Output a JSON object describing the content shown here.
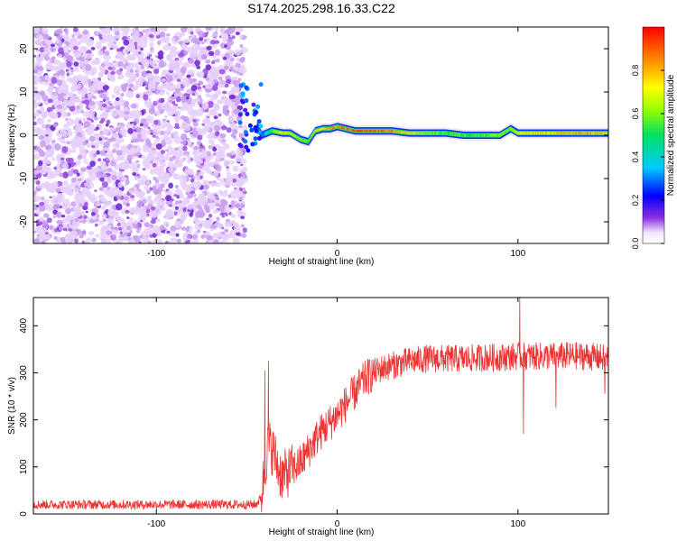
{
  "title": "S174.2025.298.16.33.C22",
  "chart_data": [
    {
      "type": "heatmap",
      "xlabel": "Height of straight line (km)",
      "ylabel": "Frequency (Hz)",
      "xlim": [
        -168,
        150
      ],
      "ylim": [
        -25,
        25
      ],
      "x_ticks": [
        -100,
        0,
        100
      ],
      "y_ticks": [
        -20,
        -10,
        0,
        10,
        20
      ],
      "x_tick_labels": [
        "-100",
        "0",
        "100"
      ],
      "y_tick_labels": [
        "-20",
        "-10",
        "0",
        "10",
        "20"
      ],
      "noise_region_x": [
        -168,
        -54
      ],
      "signal_track": [
        {
          "x": -50,
          "f": 6,
          "amp": 0.35
        },
        {
          "x": -46,
          "f": 4,
          "amp": 0.3
        },
        {
          "x": -42,
          "f": 0,
          "amp": 0.25
        },
        {
          "x": -36,
          "f": 1,
          "amp": 0.55
        },
        {
          "x": -30,
          "f": 0.5,
          "amp": 0.75
        },
        {
          "x": -26,
          "f": 0.5,
          "amp": 0.7
        },
        {
          "x": -20,
          "f": -1,
          "amp": 0.6
        },
        {
          "x": -16,
          "f": -1.5,
          "amp": 0.55
        },
        {
          "x": -12,
          "f": 1,
          "amp": 0.7
        },
        {
          "x": -8,
          "f": 1.5,
          "amp": 0.75
        },
        {
          "x": -4,
          "f": 1.5,
          "amp": 0.8
        },
        {
          "x": 0,
          "f": 2,
          "amp": 0.85
        },
        {
          "x": 5,
          "f": 1.5,
          "amp": 0.85
        },
        {
          "x": 10,
          "f": 1,
          "amp": 0.9
        },
        {
          "x": 20,
          "f": 1,
          "amp": 0.9
        },
        {
          "x": 30,
          "f": 1,
          "amp": 0.85
        },
        {
          "x": 40,
          "f": 0.5,
          "amp": 0.7
        },
        {
          "x": 50,
          "f": 0.5,
          "amp": 0.6
        },
        {
          "x": 60,
          "f": 0.5,
          "amp": 0.55
        },
        {
          "x": 70,
          "f": 0,
          "amp": 0.55
        },
        {
          "x": 80,
          "f": 0,
          "amp": 0.55
        },
        {
          "x": 90,
          "f": 0,
          "amp": 0.6
        },
        {
          "x": 96,
          "f": 1.5,
          "amp": 0.55
        },
        {
          "x": 100,
          "f": 0.5,
          "amp": 0.7
        },
        {
          "x": 110,
          "f": 0.5,
          "amp": 0.75
        },
        {
          "x": 120,
          "f": 0.5,
          "amp": 0.75
        },
        {
          "x": 130,
          "f": 0.5,
          "amp": 0.8
        },
        {
          "x": 140,
          "f": 0.5,
          "amp": 0.8
        },
        {
          "x": 148,
          "f": 0.5,
          "amp": 0.75
        }
      ]
    },
    {
      "type": "line",
      "xlabel": "Height of straight line (km)",
      "ylabel": "SNR (10 * v/v)",
      "xlim": [
        -168,
        150
      ],
      "ylim": [
        0,
        460
      ],
      "x_ticks": [
        -100,
        0,
        100
      ],
      "y_ticks": [
        0,
        100,
        200,
        300,
        400
      ],
      "x_tick_labels": [
        "-100",
        "0",
        "100"
      ],
      "y_tick_labels": [
        "0",
        "100",
        "200",
        "300",
        "400"
      ],
      "color": "#ee3333",
      "series": [
        {
          "name": "SNR",
          "x": [
            -168,
            -150,
            -130,
            -110,
            -90,
            -70,
            -50,
            -45,
            -42,
            -40,
            -38,
            -35,
            -32,
            -30,
            -25,
            -20,
            -15,
            -10,
            -5,
            0,
            5,
            10,
            15,
            20,
            25,
            30,
            40,
            50,
            60,
            70,
            80,
            90,
            100,
            110,
            120,
            130,
            140,
            150
          ],
          "values": [
            20,
            20,
            20,
            20,
            20,
            20,
            20,
            20,
            35,
            100,
            150,
            130,
            90,
            80,
            95,
            110,
            140,
            170,
            190,
            210,
            235,
            260,
            285,
            300,
            310,
            315,
            325,
            330,
            330,
            330,
            332,
            333,
            335,
            335,
            335,
            336,
            335,
            330
          ]
        }
      ],
      "spikes": [
        {
          "x": -38,
          "y": 325
        },
        {
          "x": -40,
          "y": 305
        },
        {
          "x": 101,
          "y": 460
        },
        {
          "x": 103,
          "y": 170
        },
        {
          "x": 121,
          "y": 225
        },
        {
          "x": 148,
          "y": 255
        }
      ]
    }
  ],
  "colorbar": {
    "label": "Normalized spectral amplitude",
    "ticks": [
      "0.0",
      "0.2",
      "0.4",
      "0.6",
      "0.8"
    ],
    "values": [
      0.0,
      0.2,
      0.4,
      0.6,
      0.8
    ],
    "range": [
      0,
      1
    ]
  }
}
